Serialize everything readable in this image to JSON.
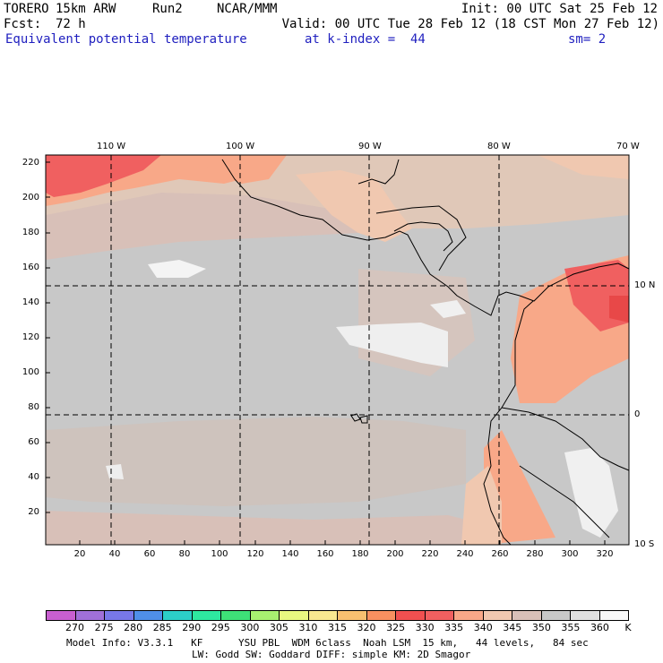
{
  "header": {
    "model": "TORERO",
    "resolution": "15km ARW",
    "run": "Run2",
    "org": "NCAR/MMM",
    "init": "Init: 00 UTC Sat 25 Feb 12",
    "fcst_label": "Fcst:",
    "fcst_value": "72 h",
    "valid": "Valid: 00 UTC Tue 28 Feb 12 (18 CST Mon 27 Feb 12)",
    "field": "Equivalent potential temperature",
    "level": "at k-index =  44",
    "smoothing": "sm= 2"
  },
  "map": {
    "lon_labels": [
      "110 W",
      "100 W",
      "90 W",
      "80 W",
      "70 W"
    ],
    "lat_labels": [
      "10 N",
      "0",
      "10 S"
    ],
    "y_ticks": [
      "220",
      "200",
      "180",
      "160",
      "140",
      "120",
      "100",
      "80",
      "60",
      "40",
      "20"
    ],
    "x_ticks": [
      "20",
      "40",
      "60",
      "80",
      "100",
      "120",
      "140",
      "160",
      "180",
      "200",
      "220",
      "240",
      "260",
      "280",
      "300",
      "320"
    ]
  },
  "colorbar": {
    "levels": [
      "270",
      "275",
      "280",
      "285",
      "290",
      "295",
      "300",
      "305",
      "310",
      "315",
      "320",
      "325",
      "330",
      "335",
      "340",
      "345",
      "350",
      "355",
      "360"
    ],
    "unit": "K",
    "colors": [
      "#c85fd0",
      "#a070d8",
      "#7878e8",
      "#4f8fe8",
      "#2ccfc8",
      "#2ee8a0",
      "#3ee078",
      "#a8f070",
      "#e8f880",
      "#f8e890",
      "#f8c070",
      "#f89060",
      "#f05050",
      "#f06060",
      "#f8a888",
      "#f0c8b0",
      "#d8c0b8",
      "#c8c8c8",
      "#e0e0e0",
      "#f8f8f8"
    ]
  },
  "footer": {
    "line1": "Model Info: V3.3.1   KF      YSU PBL  WDM 6class  Noah LSM  15 km,   44 levels,   84 sec",
    "line2": "LW: Godd SW: Goddard DIFF: simple KM: 2D Smagor"
  }
}
